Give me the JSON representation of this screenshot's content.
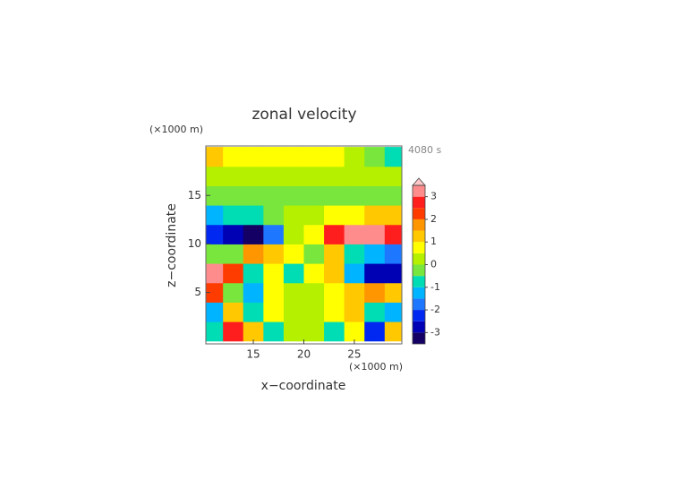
{
  "chart_data": {
    "type": "contour",
    "title": "zonal velocity",
    "time_label": "4080 s",
    "x_label": "x−coordinate",
    "y_label": "z−coordinate",
    "x_unit": "(×1000 m)",
    "y_unit": "(×1000 m)",
    "xlim": [
      10.3,
      29.7
    ],
    "xticks": [
      15,
      20,
      25
    ],
    "ylim": [
      -0.3,
      20.1
    ],
    "yticks": [
      5,
      10,
      15
    ],
    "x": [
      11,
      13,
      15,
      17,
      19,
      21,
      23,
      25,
      27,
      29
    ],
    "y": [
      1,
      3,
      5,
      7,
      9,
      11,
      13,
      15,
      17,
      19
    ],
    "z": [
      [
        -1,
        2.5,
        1,
        -1,
        0.3,
        0.3,
        -1,
        0.5,
        -2.5,
        1
      ],
      [
        -1.5,
        1,
        -1,
        0.5,
        0.3,
        0.3,
        0.5,
        1,
        -1,
        -1.5
      ],
      [
        2,
        -0.5,
        -1.5,
        0.5,
        0,
        0,
        0.5,
        1,
        1.5,
        1
      ],
      [
        3,
        2,
        -1,
        0.5,
        -1,
        0.5,
        1,
        -1.5,
        -3,
        -3
      ],
      [
        -0.5,
        -0.5,
        1.5,
        1,
        0.5,
        -0.5,
        1,
        -1,
        -1.5,
        -2
      ],
      [
        -2.5,
        -3,
        -3.2,
        -2,
        0.2,
        0.5,
        2.5,
        3.3,
        3,
        2.5
      ],
      [
        -1.3,
        -1,
        -0.6,
        -0.2,
        0.3,
        0.3,
        0.5,
        0.8,
        1.2,
        1.4
      ],
      [
        -0.2,
        -0.3,
        -0.3,
        -0.2,
        -0.2,
        -0.2,
        -0.2,
        -0.3,
        -0.3,
        -0.2
      ],
      [
        0.4,
        0.4,
        0.3,
        0.3,
        0.3,
        0.3,
        0.3,
        0.3,
        0.4,
        0.4
      ],
      [
        1,
        0.5,
        0.5,
        0.5,
        0.5,
        0.5,
        0.5,
        0.3,
        -0.3,
        -0.8
      ]
    ],
    "levels": [
      -3.5,
      -3,
      -2.5,
      -2,
      -1.5,
      -1,
      -0.5,
      0,
      0.5,
      1,
      1.5,
      2,
      2.5,
      3,
      3.5
    ],
    "colors": [
      "#140064",
      "#0000b4",
      "#0028f0",
      "#1e78ff",
      "#00b4ff",
      "#00dcb4",
      "#78e63c",
      "#b4f000",
      "#ffff00",
      "#ffc800",
      "#ff9600",
      "#ff3c00",
      "#ff1e1e",
      "#ff8c8c"
    ],
    "extend_color": "#ffc8c8",
    "cticks": [
      -3,
      -2,
      -1,
      0,
      1,
      2,
      3
    ]
  }
}
